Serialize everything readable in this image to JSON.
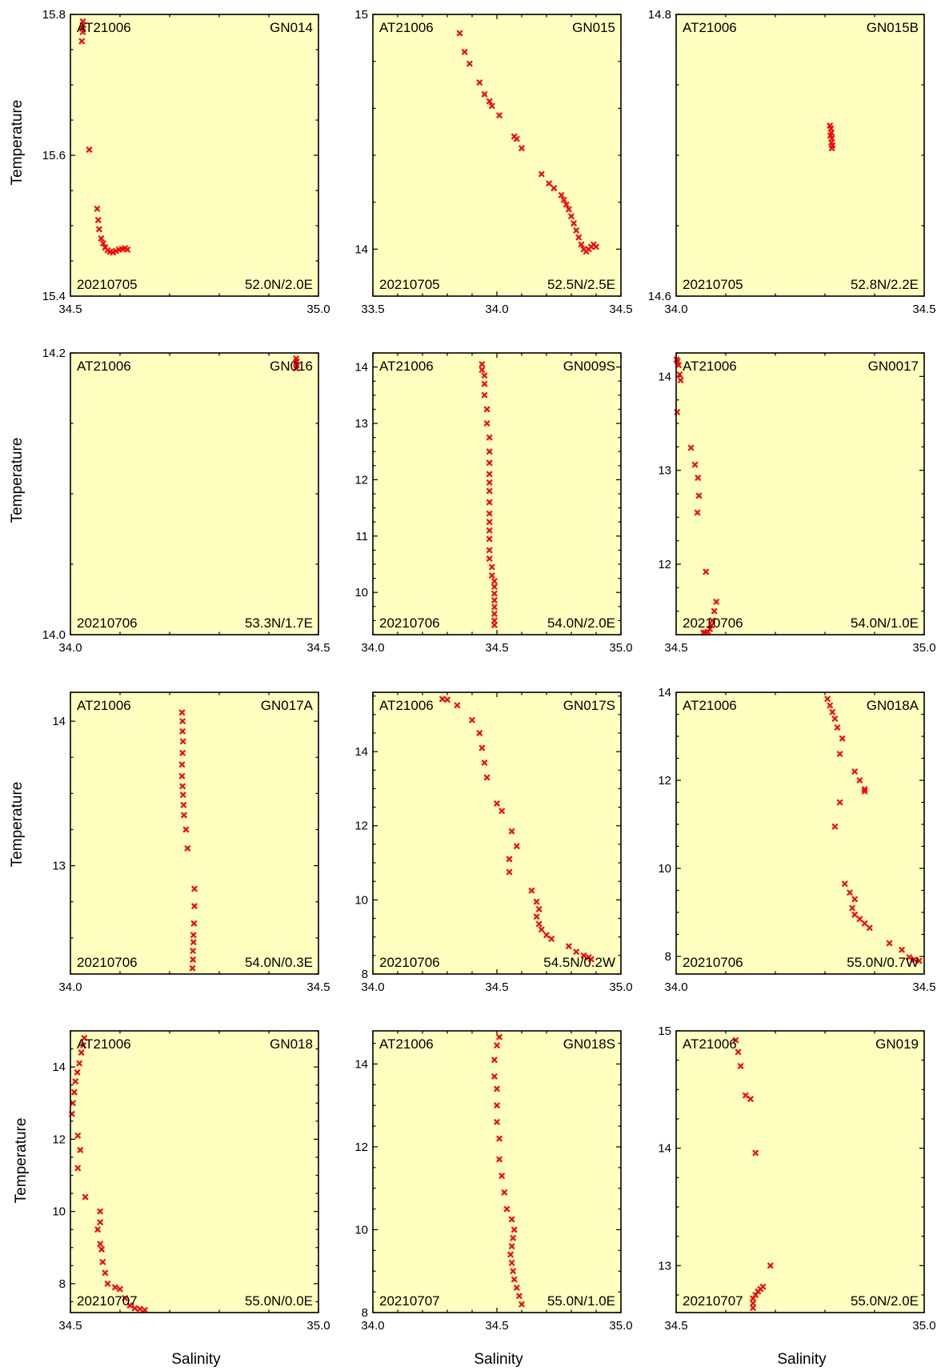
{
  "figure": {
    "xlabel": "Salinity",
    "ylabel": "Temperature",
    "colors": {
      "panel_bg": "#ffffc0",
      "marker": "#ff0000",
      "axis": "#000000"
    },
    "marker_symbol": "x"
  },
  "chart_data": [
    {
      "type": "scatter",
      "cruise": "AT21006",
      "station": "GN014",
      "date": "20210705",
      "position": "52.0N/2.0E",
      "xlim": [
        34.5,
        35.0
      ],
      "ylim": [
        15.4,
        15.8
      ],
      "xticks": [
        "34.5",
        "35.0"
      ],
      "xminor": 0.1,
      "yticks": [
        "15.4",
        "15.6",
        "15.8"
      ],
      "ymajor": 0.2,
      "yminor": 0.05,
      "points": [
        [
          34.525,
          15.79
        ],
        [
          34.526,
          15.785
        ],
        [
          34.524,
          15.78
        ],
        [
          34.525,
          15.775
        ],
        [
          34.523,
          15.762
        ],
        [
          34.538,
          15.608
        ],
        [
          34.554,
          15.524
        ],
        [
          34.556,
          15.508
        ],
        [
          34.558,
          15.495
        ],
        [
          34.562,
          15.482
        ],
        [
          34.566,
          15.475
        ],
        [
          34.57,
          15.469
        ],
        [
          34.575,
          15.465
        ],
        [
          34.58,
          15.463
        ],
        [
          34.586,
          15.462
        ],
        [
          34.592,
          15.464
        ],
        [
          34.598,
          15.466
        ],
        [
          34.604,
          15.467
        ],
        [
          34.61,
          15.468
        ],
        [
          34.615,
          15.466
        ]
      ]
    },
    {
      "type": "scatter",
      "cruise": "AT21006",
      "station": "GN015",
      "date": "20210705",
      "position": "52.5N/2.5E",
      "xlim": [
        33.5,
        34.5
      ],
      "ylim": [
        13.8,
        15.0
      ],
      "xticks": [
        "33.5",
        "34.0",
        "34.5"
      ],
      "xminor": 0.1,
      "yticks": [
        "14",
        "15"
      ],
      "ymajor": 1,
      "yminor": 0.2,
      "points": [
        [
          33.85,
          14.92
        ],
        [
          33.87,
          14.84
        ],
        [
          33.89,
          14.79
        ],
        [
          33.93,
          14.71
        ],
        [
          33.95,
          14.66
        ],
        [
          33.97,
          14.63
        ],
        [
          33.98,
          14.61
        ],
        [
          34.01,
          14.57
        ],
        [
          34.07,
          14.48
        ],
        [
          34.08,
          14.47
        ],
        [
          34.1,
          14.43
        ],
        [
          34.18,
          14.32
        ],
        [
          34.21,
          14.28
        ],
        [
          34.23,
          14.26
        ],
        [
          34.26,
          14.23
        ],
        [
          34.27,
          14.21
        ],
        [
          34.28,
          14.19
        ],
        [
          34.29,
          14.17
        ],
        [
          34.3,
          14.14
        ],
        [
          34.31,
          14.11
        ],
        [
          34.32,
          14.08
        ],
        [
          34.33,
          14.05
        ],
        [
          34.34,
          14.02
        ],
        [
          34.35,
          14.0
        ],
        [
          34.36,
          13.99
        ],
        [
          34.37,
          14.0
        ],
        [
          34.38,
          14.01
        ],
        [
          34.39,
          14.02
        ],
        [
          34.4,
          14.01
        ]
      ]
    },
    {
      "type": "scatter",
      "cruise": "AT21006",
      "station": "GN015B",
      "date": "20210705",
      "position": "52.8N/2.2E",
      "xlim": [
        34.0,
        34.5
      ],
      "ylim": [
        14.6,
        14.8
      ],
      "xticks": [
        "34.0",
        "34.5"
      ],
      "xminor": 0.1,
      "yticks": [
        "14.6",
        "14.8"
      ],
      "ymajor": 0.2,
      "yminor": 0.05,
      "points": [
        [
          34.31,
          14.721
        ],
        [
          34.312,
          14.719
        ],
        [
          34.313,
          14.716
        ],
        [
          34.311,
          14.714
        ],
        [
          34.314,
          14.712
        ],
        [
          34.313,
          14.709
        ],
        [
          34.315,
          14.707
        ],
        [
          34.314,
          14.705
        ]
      ]
    },
    {
      "type": "scatter",
      "cruise": "AT21006",
      "station": "GN016",
      "date": "20210706",
      "position": "53.3N/1.7E",
      "xlim": [
        34.0,
        34.5
      ],
      "ylim": [
        14.0,
        14.2
      ],
      "xticks": [
        "34.0",
        "34.5"
      ],
      "xminor": 0.1,
      "yticks": [
        "14.0",
        "14.2"
      ],
      "ymajor": 0.2,
      "yminor": 0.05,
      "points": [
        [
          34.455,
          14.196
        ],
        [
          34.456,
          14.194
        ],
        [
          34.455,
          14.193
        ],
        [
          34.456,
          14.191
        ],
        [
          34.455,
          14.189
        ]
      ]
    },
    {
      "type": "scatter",
      "cruise": "AT21006",
      "station": "GN009S",
      "date": "20210706",
      "position": "54.0N/2.0E",
      "xlim": [
        34.0,
        35.0
      ],
      "ylim": [
        9.25,
        14.25
      ],
      "xticks": [
        "34.0",
        "34.5",
        "35.0"
      ],
      "xminor": 0.1,
      "yticks": [
        "10",
        "11",
        "12",
        "13",
        "14"
      ],
      "ymajor": 1,
      "yminor": 0.25,
      "points": [
        [
          34.44,
          14.05
        ],
        [
          34.44,
          13.95
        ],
        [
          34.45,
          13.85
        ],
        [
          34.45,
          13.7
        ],
        [
          34.45,
          13.5
        ],
        [
          34.46,
          13.25
        ],
        [
          34.46,
          13.0
        ],
        [
          34.47,
          12.75
        ],
        [
          34.47,
          12.5
        ],
        [
          34.47,
          12.3
        ],
        [
          34.47,
          12.1
        ],
        [
          34.47,
          11.95
        ],
        [
          34.47,
          11.8
        ],
        [
          34.47,
          11.6
        ],
        [
          34.47,
          11.4
        ],
        [
          34.47,
          11.25
        ],
        [
          34.47,
          11.1
        ],
        [
          34.47,
          10.95
        ],
        [
          34.47,
          10.75
        ],
        [
          34.47,
          10.6
        ],
        [
          34.48,
          10.45
        ],
        [
          34.48,
          10.3
        ],
        [
          34.49,
          10.2
        ],
        [
          34.49,
          10.1
        ],
        [
          34.49,
          9.98
        ],
        [
          34.49,
          9.86
        ],
        [
          34.49,
          9.74
        ],
        [
          34.49,
          9.62
        ],
        [
          34.49,
          9.5
        ],
        [
          34.49,
          9.42
        ]
      ]
    },
    {
      "type": "scatter",
      "cruise": "AT21006",
      "station": "GN0017",
      "date": "20210706",
      "position": "54.0N/1.0E",
      "xlim": [
        34.5,
        35.0
      ],
      "ylim": [
        11.25,
        14.25
      ],
      "xticks": [
        "34.5",
        "35.0"
      ],
      "xminor": 0.1,
      "yticks": [
        "12",
        "13",
        "14"
      ],
      "ymajor": 1,
      "yminor": 0.25,
      "points": [
        [
          34.501,
          14.18
        ],
        [
          34.503,
          14.16
        ],
        [
          34.505,
          14.12
        ],
        [
          34.507,
          14.02
        ],
        [
          34.509,
          13.96
        ],
        [
          34.502,
          13.62
        ],
        [
          34.53,
          13.24
        ],
        [
          34.538,
          13.06
        ],
        [
          34.544,
          12.92
        ],
        [
          34.546,
          12.73
        ],
        [
          34.543,
          12.55
        ],
        [
          34.56,
          11.92
        ],
        [
          34.581,
          11.6
        ],
        [
          34.577,
          11.5
        ],
        [
          34.573,
          11.4
        ],
        [
          34.571,
          11.35
        ],
        [
          34.568,
          11.31
        ],
        [
          34.564,
          11.28
        ],
        [
          34.559,
          11.27
        ],
        [
          34.555,
          11.27
        ]
      ]
    },
    {
      "type": "scatter",
      "cruise": "AT21006",
      "station": "GN017A",
      "date": "20210706",
      "position": "54.0N/0.3E",
      "xlim": [
        34.0,
        34.5
      ],
      "ylim": [
        12.25,
        14.2
      ],
      "xticks": [
        "34.0",
        "34.5"
      ],
      "xminor": 0.1,
      "yticks": [
        "13",
        "14"
      ],
      "ymajor": 1,
      "yminor": 0.25,
      "points": [
        [
          34.225,
          14.06
        ],
        [
          34.226,
          14.0
        ],
        [
          34.226,
          13.93
        ],
        [
          34.227,
          13.86
        ],
        [
          34.226,
          13.78
        ],
        [
          34.225,
          13.7
        ],
        [
          34.225,
          13.62
        ],
        [
          34.226,
          13.55
        ],
        [
          34.227,
          13.49
        ],
        [
          34.228,
          13.42
        ],
        [
          34.229,
          13.35
        ],
        [
          34.233,
          13.25
        ],
        [
          34.236,
          13.12
        ],
        [
          34.25,
          12.84
        ],
        [
          34.25,
          12.72
        ],
        [
          34.249,
          12.6
        ],
        [
          34.248,
          12.52
        ],
        [
          34.248,
          12.47
        ],
        [
          34.247,
          12.41
        ],
        [
          34.247,
          12.35
        ],
        [
          34.246,
          12.29
        ]
      ]
    },
    {
      "type": "scatter",
      "cruise": "AT21006",
      "station": "GN017S",
      "date": "20210706",
      "position": "54.5N/0.2W",
      "xlim": [
        34.0,
        35.0
      ],
      "ylim": [
        8.0,
        15.6
      ],
      "xticks": [
        "34.0",
        "34.5",
        "35.0"
      ],
      "xminor": 0.1,
      "yticks": [
        "8",
        "10",
        "12",
        "14"
      ],
      "ymajor": 2,
      "yminor": 0.5,
      "points": [
        [
          34.28,
          15.42
        ],
        [
          34.3,
          15.4
        ],
        [
          34.34,
          15.25
        ],
        [
          34.4,
          14.85
        ],
        [
          34.43,
          14.5
        ],
        [
          34.44,
          14.1
        ],
        [
          34.45,
          13.7
        ],
        [
          34.46,
          13.3
        ],
        [
          34.5,
          12.6
        ],
        [
          34.52,
          12.4
        ],
        [
          34.56,
          11.85
        ],
        [
          34.58,
          11.45
        ],
        [
          34.55,
          11.1
        ],
        [
          34.55,
          10.75
        ],
        [
          34.64,
          10.25
        ],
        [
          34.66,
          9.95
        ],
        [
          34.67,
          9.75
        ],
        [
          34.66,
          9.55
        ],
        [
          34.67,
          9.35
        ],
        [
          34.68,
          9.2
        ],
        [
          34.7,
          9.05
        ],
        [
          34.72,
          8.95
        ],
        [
          34.79,
          8.75
        ],
        [
          34.82,
          8.6
        ],
        [
          34.85,
          8.5
        ],
        [
          34.87,
          8.45
        ],
        [
          34.88,
          8.4
        ]
      ]
    },
    {
      "type": "scatter",
      "cruise": "AT21006",
      "station": "GN018A",
      "date": "20210706",
      "position": "55.0N/0.7W",
      "xlim": [
        34.0,
        34.5
      ],
      "ylim": [
        7.6,
        14.0
      ],
      "xticks": [
        "34.0",
        "34.5"
      ],
      "xminor": 0.1,
      "yticks": [
        "8",
        "10",
        "12",
        "14"
      ],
      "ymajor": 2,
      "yminor": 0.5,
      "points": [
        [
          34.305,
          13.85
        ],
        [
          34.31,
          13.7
        ],
        [
          34.315,
          13.55
        ],
        [
          34.32,
          13.4
        ],
        [
          34.325,
          13.2
        ],
        [
          34.335,
          12.95
        ],
        [
          34.33,
          12.6
        ],
        [
          34.36,
          12.2
        ],
        [
          34.33,
          11.5
        ],
        [
          34.32,
          10.95
        ],
        [
          34.37,
          12.0
        ],
        [
          34.38,
          11.75
        ],
        [
          34.38,
          11.8
        ],
        [
          34.34,
          9.65
        ],
        [
          34.35,
          9.45
        ],
        [
          34.36,
          9.3
        ],
        [
          34.355,
          9.1
        ],
        [
          34.36,
          8.95
        ],
        [
          34.37,
          8.85
        ],
        [
          34.38,
          8.75
        ],
        [
          34.39,
          8.65
        ],
        [
          34.43,
          8.3
        ],
        [
          34.455,
          8.15
        ],
        [
          34.47,
          7.98
        ],
        [
          34.48,
          7.93
        ],
        [
          34.49,
          7.9
        ]
      ]
    },
    {
      "type": "scatter",
      "cruise": "AT21006",
      "station": "GN018",
      "date": "20210707",
      "position": "55.0N/0.0E",
      "xlim": [
        34.5,
        35.0
      ],
      "ylim": [
        7.2,
        15.0
      ],
      "xticks": [
        "34.5",
        "35.0"
      ],
      "xminor": 0.1,
      "yticks": [
        "8",
        "10",
        "12",
        "14"
      ],
      "ymajor": 2,
      "yminor": 0.5,
      "points": [
        [
          34.528,
          14.8
        ],
        [
          34.526,
          14.6
        ],
        [
          34.522,
          14.4
        ],
        [
          34.518,
          14.1
        ],
        [
          34.514,
          13.85
        ],
        [
          34.51,
          13.6
        ],
        [
          34.508,
          13.3
        ],
        [
          34.505,
          13.0
        ],
        [
          34.503,
          12.7
        ],
        [
          34.515,
          12.1
        ],
        [
          34.52,
          11.7
        ],
        [
          34.515,
          11.2
        ],
        [
          34.53,
          10.4
        ],
        [
          34.56,
          10.0
        ],
        [
          34.56,
          9.7
        ],
        [
          34.555,
          9.5
        ],
        [
          34.56,
          9.1
        ],
        [
          34.563,
          8.95
        ],
        [
          34.565,
          8.6
        ],
        [
          34.57,
          8.3
        ],
        [
          34.575,
          8.0
        ],
        [
          34.59,
          7.9
        ],
        [
          34.6,
          7.85
        ],
        [
          34.61,
          7.6
        ],
        [
          34.62,
          7.4
        ],
        [
          34.63,
          7.32
        ],
        [
          34.64,
          7.3
        ],
        [
          34.65,
          7.27
        ]
      ]
    },
    {
      "type": "scatter",
      "cruise": "AT21006",
      "station": "GN018S",
      "date": "20210707",
      "position": "55.0N/1.0E",
      "xlim": [
        34.0,
        35.0
      ],
      "ylim": [
        8.0,
        14.8
      ],
      "xticks": [
        "34.0",
        "34.5",
        "35.0"
      ],
      "xminor": 0.1,
      "yticks": [
        "8",
        "10",
        "12",
        "14"
      ],
      "ymajor": 2,
      "yminor": 0.5,
      "points": [
        [
          34.51,
          14.65
        ],
        [
          34.5,
          14.45
        ],
        [
          34.49,
          14.1
        ],
        [
          34.49,
          13.7
        ],
        [
          34.5,
          13.4
        ],
        [
          34.5,
          13.0
        ],
        [
          34.5,
          12.6
        ],
        [
          34.51,
          12.2
        ],
        [
          34.51,
          11.7
        ],
        [
          34.52,
          11.3
        ],
        [
          34.53,
          10.9
        ],
        [
          34.54,
          10.5
        ],
        [
          34.56,
          10.25
        ],
        [
          34.57,
          10.0
        ],
        [
          34.565,
          9.8
        ],
        [
          34.56,
          9.6
        ],
        [
          34.555,
          9.4
        ],
        [
          34.56,
          9.2
        ],
        [
          34.565,
          9.0
        ],
        [
          34.57,
          8.8
        ],
        [
          34.58,
          8.6
        ],
        [
          34.59,
          8.4
        ],
        [
          34.6,
          8.2
        ]
      ]
    },
    {
      "type": "scatter",
      "cruise": "AT21006",
      "station": "GN019",
      "date": "20210707",
      "position": "55.0N/2.0E",
      "xlim": [
        34.5,
        35.0
      ],
      "ylim": [
        12.6,
        15.0
      ],
      "xticks": [
        "34.5",
        "35.0"
      ],
      "xminor": 0.1,
      "yticks": [
        "13",
        "14",
        "15"
      ],
      "ymajor": 1,
      "yminor": 0.25,
      "points": [
        [
          34.62,
          14.92
        ],
        [
          34.625,
          14.82
        ],
        [
          34.63,
          14.7
        ],
        [
          34.64,
          14.45
        ],
        [
          34.65,
          14.42
        ],
        [
          34.66,
          13.96
        ],
        [
          34.69,
          13.0
        ],
        [
          34.675,
          12.82
        ],
        [
          34.67,
          12.8
        ],
        [
          34.665,
          12.78
        ],
        [
          34.66,
          12.75
        ],
        [
          34.655,
          12.72
        ],
        [
          34.655,
          12.68
        ],
        [
          34.655,
          12.64
        ]
      ]
    }
  ]
}
